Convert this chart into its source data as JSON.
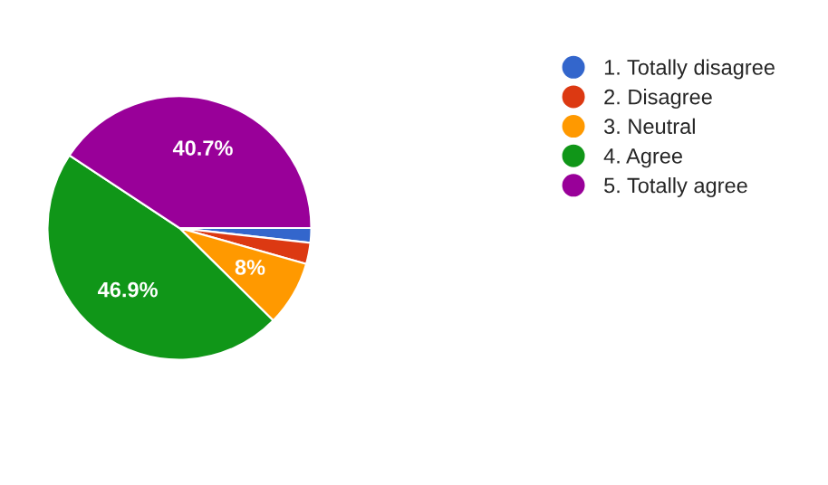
{
  "chart_data": {
    "type": "pie",
    "categories": [
      "1. Totally disagree",
      "2. Disagree",
      "3. Neutral",
      "4. Agree",
      "5. Totally agree"
    ],
    "values": [
      1.8,
      2.6,
      8,
      46.9,
      40.7
    ],
    "colors": [
      "#3366cc",
      "#dc3912",
      "#ff9900",
      "#109618",
      "#990099"
    ],
    "value_labels": [
      null,
      null,
      "8%",
      "46.9%",
      "40.7%"
    ],
    "legend": "top right"
  }
}
